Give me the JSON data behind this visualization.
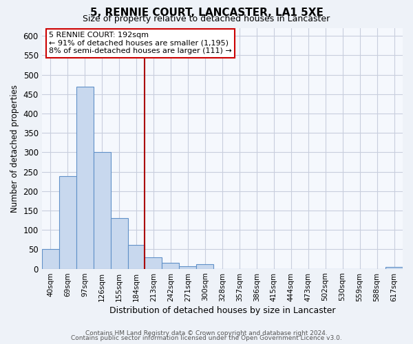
{
  "title": "5, RENNIE COURT, LANCASTER, LA1 5XE",
  "subtitle": "Size of property relative to detached houses in Lancaster",
  "xlabel": "Distribution of detached houses by size in Lancaster",
  "ylabel": "Number of detached properties",
  "bar_labels": [
    "40sqm",
    "69sqm",
    "97sqm",
    "126sqm",
    "155sqm",
    "184sqm",
    "213sqm",
    "242sqm",
    "271sqm",
    "300sqm",
    "328sqm",
    "357sqm",
    "386sqm",
    "415sqm",
    "444sqm",
    "473sqm",
    "502sqm",
    "530sqm",
    "559sqm",
    "588sqm",
    "617sqm"
  ],
  "bar_values": [
    50,
    238,
    470,
    300,
    130,
    62,
    30,
    16,
    7,
    11,
    0,
    0,
    0,
    0,
    0,
    0,
    0,
    0,
    0,
    0,
    4
  ],
  "bar_color": "#c8d8ee",
  "bar_edge_color": "#6090c8",
  "vline_x_index": 5,
  "vline_color": "#aa0000",
  "annotation_title": "5 RENNIE COURT: 192sqm",
  "annotation_line1": "← 91% of detached houses are smaller (1,195)",
  "annotation_line2": "8% of semi-detached houses are larger (111) →",
  "annotation_box_facecolor": "#ffffff",
  "annotation_box_edgecolor": "#cc0000",
  "ylim": [
    0,
    620
  ],
  "yticks": [
    0,
    50,
    100,
    150,
    200,
    250,
    300,
    350,
    400,
    450,
    500,
    550,
    600
  ],
  "footer1": "Contains HM Land Registry data © Crown copyright and database right 2024.",
  "footer2": "Contains public sector information licensed under the Open Government Licence v3.0.",
  "background_color": "#eef2f8",
  "plot_bg_color": "#f5f8fd",
  "grid_color": "#c8cedd"
}
